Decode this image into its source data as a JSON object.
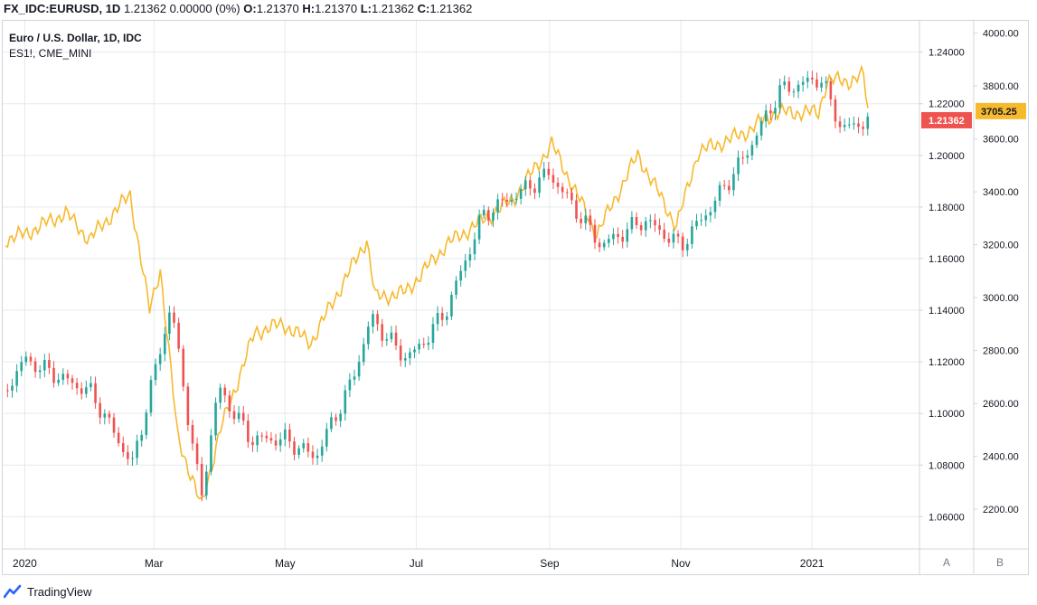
{
  "header": {
    "symbol": "FX_IDC:EURUSD,",
    "interval": "1D",
    "last": "1.21362",
    "change": "0.00000 (0%)",
    "o_label": "O:",
    "o_value": "1.21370",
    "h_label": "H:",
    "h_value": "1.21370",
    "l_label": "L:",
    "l_value": "1.21362",
    "c_label": "C:",
    "c_value": "1.21362"
  },
  "legend": {
    "main_series": "Euro / U.S. Dollar, 1D, IDC",
    "overlay_series": "ES1!, CME_MINI"
  },
  "branding": {
    "name": "TradingView"
  },
  "scale_buttons": {
    "a": "A",
    "b": "B"
  },
  "colors": {
    "up": "#26a69a",
    "down": "#ef5350",
    "overlay": "#f7b92e",
    "grid": "#e6e9ef",
    "axis_text": "#131722",
    "border": "#d1d4dc"
  },
  "chart_data": {
    "type": "candlestick + line overlay",
    "x_range": [
      "2019-12-23",
      "2021-01-27"
    ],
    "x_ticks": [
      {
        "date": "2020-01-01",
        "label": "2020"
      },
      {
        "date": "2020-03-01",
        "label": "Mar"
      },
      {
        "date": "2020-05-01",
        "label": "May"
      },
      {
        "date": "2020-07-01",
        "label": "Jul"
      },
      {
        "date": "2020-09-01",
        "label": "Sep"
      },
      {
        "date": "2020-11-01",
        "label": "Nov"
      },
      {
        "date": "2021-01-01",
        "label": "2021"
      }
    ],
    "eurusd_axis": {
      "ylim": [
        1.0475,
        1.2525
      ],
      "ticks": [
        "1.06000",
        "1.08000",
        "1.10000",
        "1.12000",
        "1.14000",
        "1.16000",
        "1.18000",
        "1.20000",
        "1.22000",
        "1.24000"
      ],
      "last_label": "1.21362",
      "last_value": 1.21362
    },
    "es_axis": {
      "ylim": [
        2050,
        4050
      ],
      "ticks": [
        "2200.00",
        "2400.00",
        "2600.00",
        "2800.00",
        "3000.00",
        "3200.00",
        "3400.00",
        "3600.00",
        "3800.00",
        "4000.00"
      ],
      "last_label": "3705.25",
      "last_value": 3705.25
    },
    "eurusd_close": [
      {
        "date": "2019-12-23",
        "value": 1.109
      },
      {
        "date": "2020-01-01",
        "value": 1.121
      },
      {
        "date": "2020-01-15",
        "value": 1.115
      },
      {
        "date": "2020-02-01",
        "value": 1.108
      },
      {
        "date": "2020-02-20",
        "value": 1.08
      },
      {
        "date": "2020-03-02",
        "value": 1.118
      },
      {
        "date": "2020-03-09",
        "value": 1.142
      },
      {
        "date": "2020-03-18",
        "value": 1.093
      },
      {
        "date": "2020-03-23",
        "value": 1.067
      },
      {
        "date": "2020-03-31",
        "value": 1.11
      },
      {
        "date": "2020-04-15",
        "value": 1.09
      },
      {
        "date": "2020-05-01",
        "value": 1.09
      },
      {
        "date": "2020-05-15",
        "value": 1.083
      },
      {
        "date": "2020-06-01",
        "value": 1.112
      },
      {
        "date": "2020-06-10",
        "value": 1.137
      },
      {
        "date": "2020-06-25",
        "value": 1.122
      },
      {
        "date": "2020-07-01",
        "value": 1.124
      },
      {
        "date": "2020-07-15",
        "value": 1.14
      },
      {
        "date": "2020-08-01",
        "value": 1.177
      },
      {
        "date": "2020-08-15",
        "value": 1.184
      },
      {
        "date": "2020-09-01",
        "value": 1.193
      },
      {
        "date": "2020-09-25",
        "value": 1.165
      },
      {
        "date": "2020-10-15",
        "value": 1.175
      },
      {
        "date": "2020-11-01",
        "value": 1.165
      },
      {
        "date": "2020-11-15",
        "value": 1.18
      },
      {
        "date": "2020-12-01",
        "value": 1.2
      },
      {
        "date": "2020-12-17",
        "value": 1.225
      },
      {
        "date": "2021-01-05",
        "value": 1.23
      },
      {
        "date": "2021-01-15",
        "value": 1.21
      },
      {
        "date": "2021-01-27",
        "value": 1.2136
      }
    ],
    "es1_close": [
      {
        "date": "2019-12-23",
        "value": 3220
      },
      {
        "date": "2020-01-01",
        "value": 3240
      },
      {
        "date": "2020-01-20",
        "value": 3320
      },
      {
        "date": "2020-01-31",
        "value": 3220
      },
      {
        "date": "2020-02-19",
        "value": 3390
      },
      {
        "date": "2020-02-28",
        "value": 2950
      },
      {
        "date": "2020-03-04",
        "value": 3110
      },
      {
        "date": "2020-03-12",
        "value": 2480
      },
      {
        "date": "2020-03-23",
        "value": 2210
      },
      {
        "date": "2020-04-01",
        "value": 2500
      },
      {
        "date": "2020-04-17",
        "value": 2870
      },
      {
        "date": "2020-04-30",
        "value": 2900
      },
      {
        "date": "2020-05-13",
        "value": 2830
      },
      {
        "date": "2020-06-08",
        "value": 3220
      },
      {
        "date": "2020-06-12",
        "value": 3000
      },
      {
        "date": "2020-06-26",
        "value": 3020
      },
      {
        "date": "2020-07-15",
        "value": 3200
      },
      {
        "date": "2020-08-15",
        "value": 3370
      },
      {
        "date": "2020-09-02",
        "value": 3580
      },
      {
        "date": "2020-09-23",
        "value": 3240
      },
      {
        "date": "2020-10-12",
        "value": 3540
      },
      {
        "date": "2020-10-30",
        "value": 3270
      },
      {
        "date": "2020-11-09",
        "value": 3550
      },
      {
        "date": "2020-11-30",
        "value": 3620
      },
      {
        "date": "2020-12-15",
        "value": 3700
      },
      {
        "date": "2021-01-04",
        "value": 3700
      },
      {
        "date": "2021-01-08",
        "value": 3820
      },
      {
        "date": "2021-01-19",
        "value": 3820
      },
      {
        "date": "2021-01-25",
        "value": 3840
      },
      {
        "date": "2021-01-27",
        "value": 3705.25
      }
    ]
  }
}
